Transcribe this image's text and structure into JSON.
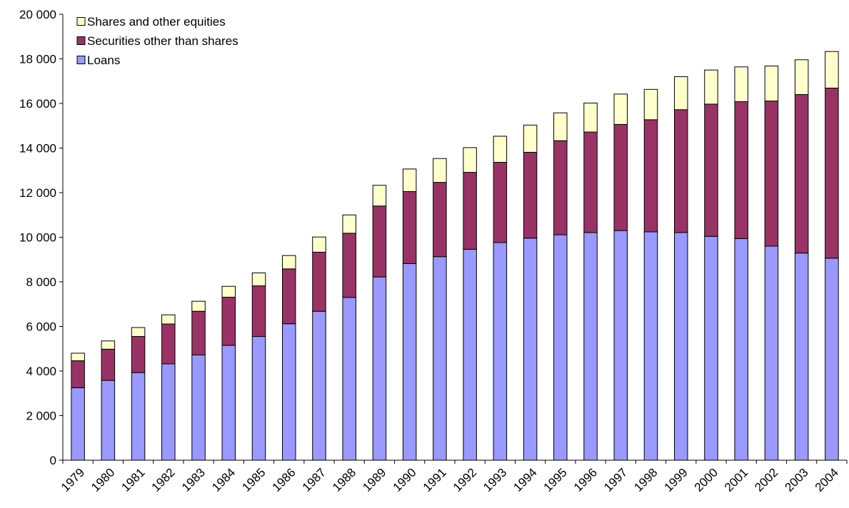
{
  "chart_data": {
    "type": "bar",
    "stacked": true,
    "title": "",
    "xlabel": "",
    "ylabel": "",
    "ylim": [
      0,
      20000
    ],
    "yticks": [
      "0",
      "2 000",
      "4 000",
      "6 000",
      "8 000",
      "10 000",
      "12 000",
      "14 000",
      "16 000",
      "18 000",
      "20 000"
    ],
    "ytick_values": [
      0,
      2000,
      4000,
      6000,
      8000,
      10000,
      12000,
      14000,
      16000,
      18000,
      20000
    ],
    "grid": false,
    "legend_placement": "top-left",
    "categories": [
      "1979",
      "1980",
      "1981",
      "1982",
      "1983",
      "1984",
      "1985",
      "1986",
      "1987",
      "1988",
      "1989",
      "1990",
      "1991",
      "1992",
      "1993",
      "1994",
      "1995",
      "1996",
      "1997",
      "1998",
      "1999",
      "2000",
      "2001",
      "2002",
      "2003",
      "2004"
    ],
    "series": [
      {
        "name": "Loans",
        "color": "#9999ff",
        "values": [
          3250,
          3580,
          3930,
          4320,
          4720,
          5150,
          5550,
          6120,
          6680,
          7300,
          8220,
          8820,
          9130,
          9460,
          9760,
          9960,
          10110,
          10210,
          10300,
          10240,
          10210,
          10040,
          9940,
          9600,
          9290,
          9060
        ]
      },
      {
        "name": "Securities other than shares",
        "color": "#993366",
        "values": [
          1210,
          1400,
          1620,
          1790,
          1960,
          2160,
          2270,
          2460,
          2650,
          2880,
          3180,
          3230,
          3330,
          3450,
          3600,
          3850,
          4220,
          4510,
          4760,
          5030,
          5510,
          5930,
          6140,
          6510,
          7110,
          7630
        ]
      },
      {
        "name": "Shares and other equities",
        "color": "#ffffcc",
        "values": [
          340,
          370,
          400,
          410,
          450,
          490,
          580,
          600,
          680,
          820,
          930,
          1010,
          1070,
          1110,
          1170,
          1220,
          1250,
          1300,
          1360,
          1360,
          1480,
          1530,
          1560,
          1570,
          1560,
          1640
        ]
      }
    ],
    "legend_order": [
      2,
      1,
      0
    ]
  }
}
